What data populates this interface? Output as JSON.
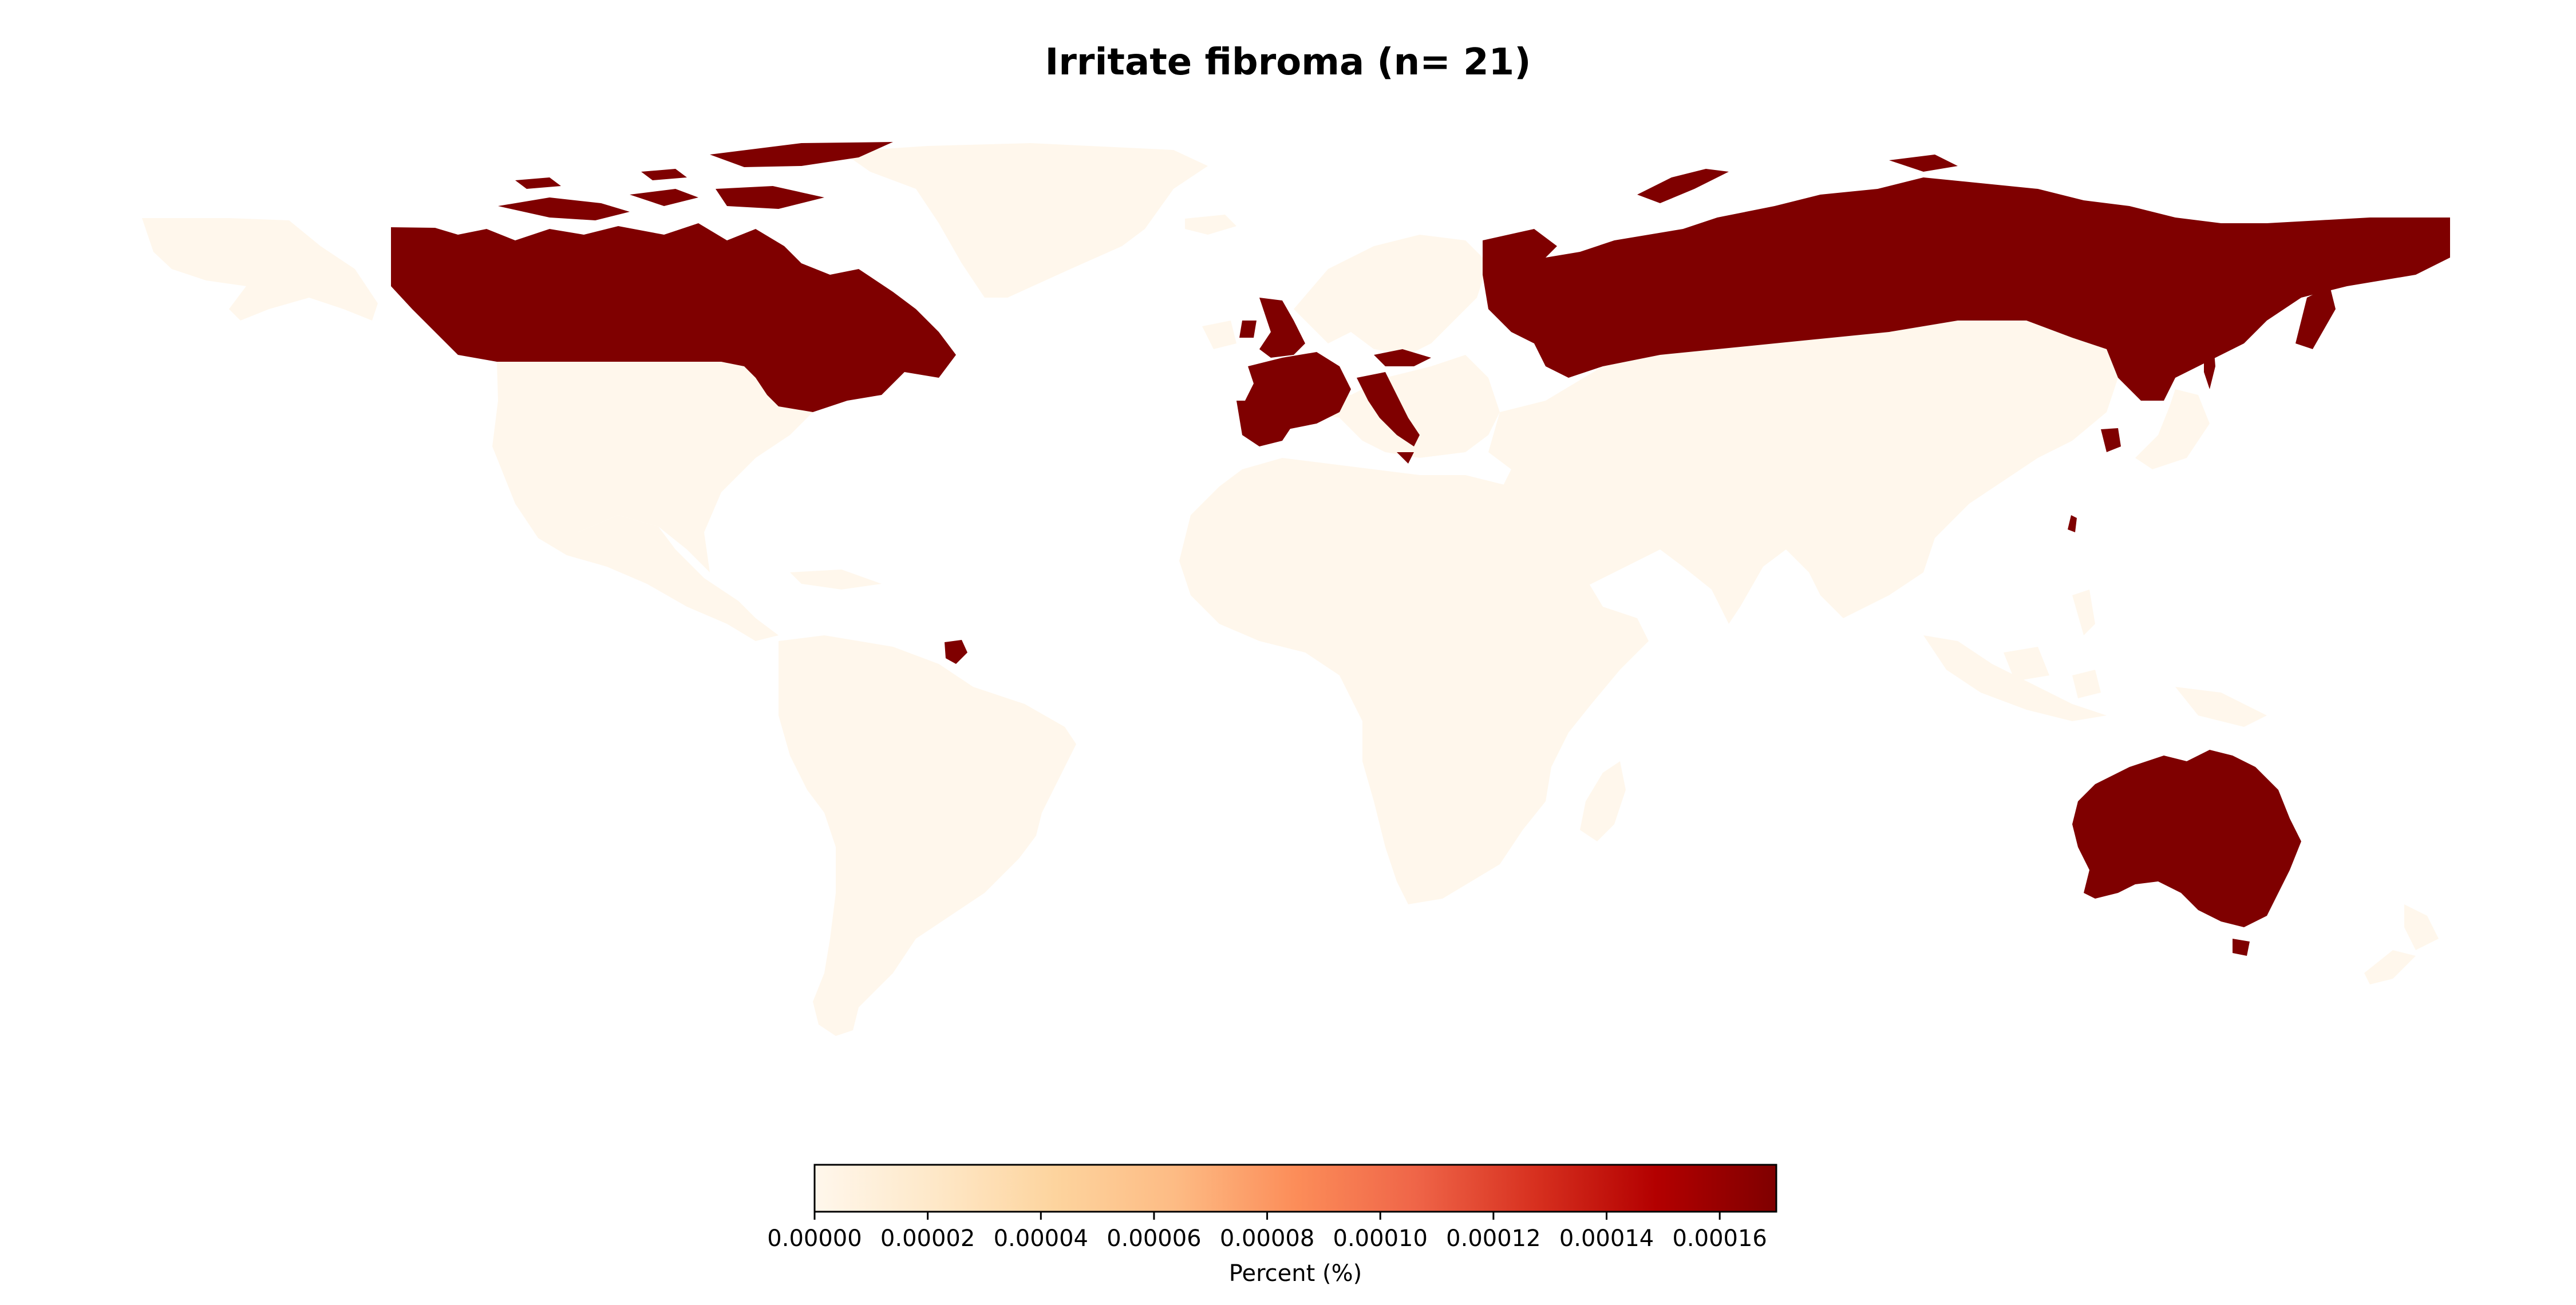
{
  "title": "Irritate fibroma (n= 21)",
  "colorbar": {
    "label": "Percent (%)",
    "ticks": [
      "0.00000",
      "0.00002",
      "0.00004",
      "0.00006",
      "0.00008",
      "0.00010",
      "0.00012",
      "0.00014",
      "0.00016"
    ],
    "range": [
      0,
      0.00017
    ],
    "colormap": "OrRd",
    "stops": [
      "#fff7ec",
      "#fee8c8",
      "#fdd49e",
      "#fdbb84",
      "#fc8d59",
      "#ef6548",
      "#d7301f",
      "#b30000",
      "#7f0000"
    ]
  },
  "colors": {
    "zero": "#fff7ec",
    "max": "#7f0000",
    "background": "#ffffff"
  },
  "map_data": {
    "highlighted_regions": [
      "Canada",
      "Russia",
      "France",
      "United Kingdom",
      "Italy",
      "Australia",
      "South Korea",
      "French Guiana",
      "Taiwan"
    ],
    "other_regions": [
      "United States",
      "Greenland",
      "Alaska",
      "Latin America",
      "Africa",
      "Middle East",
      "Asia",
      "Europe",
      "Southeast Asia",
      "New Zealand",
      "Madagascar",
      "Japan"
    ]
  }
}
